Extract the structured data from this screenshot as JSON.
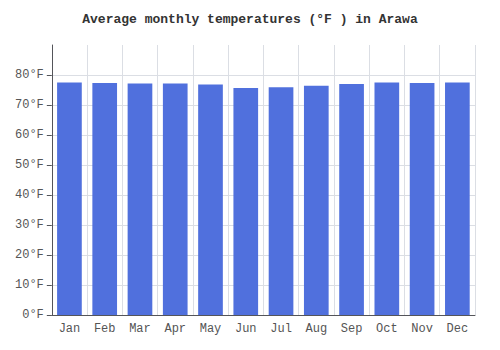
{
  "chart_data": {
    "type": "bar",
    "title": "Average monthly temperatures (°F ) in Arawa",
    "categories": [
      "Jan",
      "Feb",
      "Mar",
      "Apr",
      "May",
      "Jun",
      "Jul",
      "Aug",
      "Sep",
      "Oct",
      "Nov",
      "Dec"
    ],
    "values": [
      77.5,
      77.3,
      77.2,
      77.2,
      76.8,
      75.7,
      75.9,
      76.4,
      77.0,
      77.5,
      77.3,
      77.5
    ],
    "ylim": [
      0,
      90
    ],
    "yticks": [
      {
        "value": 0,
        "label": "0°F"
      },
      {
        "value": 10,
        "label": "10°F"
      },
      {
        "value": 20,
        "label": "20°F"
      },
      {
        "value": 30,
        "label": "30°F"
      },
      {
        "value": 40,
        "label": "40°F"
      },
      {
        "value": 50,
        "label": "50°F"
      },
      {
        "value": 60,
        "label": "60°F"
      },
      {
        "value": 70,
        "label": "70°F"
      },
      {
        "value": 80,
        "label": "80°F"
      }
    ],
    "grid": true
  }
}
